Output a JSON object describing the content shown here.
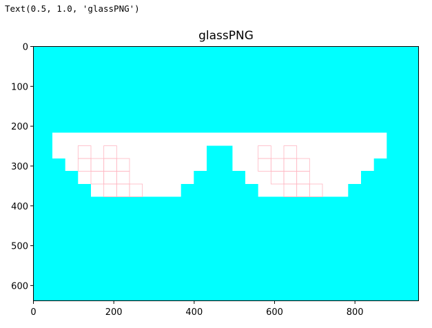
{
  "output": {
    "text": "Text(0.5, 1.0, 'glassPNG')"
  },
  "chart_data": {
    "type": "image",
    "title": "glassPNG",
    "xlabel": "",
    "ylabel": "",
    "xlim": [
      0,
      960
    ],
    "ylim": [
      640,
      0
    ],
    "xticks": [
      0,
      200,
      400,
      600,
      800
    ],
    "yticks": [
      0,
      100,
      200,
      300,
      400,
      500,
      600
    ],
    "grid": false,
    "colors": {
      "background": "#00ffff",
      "glasses": "#ffffff",
      "pixel_outline": "#ffb6c1"
    }
  }
}
